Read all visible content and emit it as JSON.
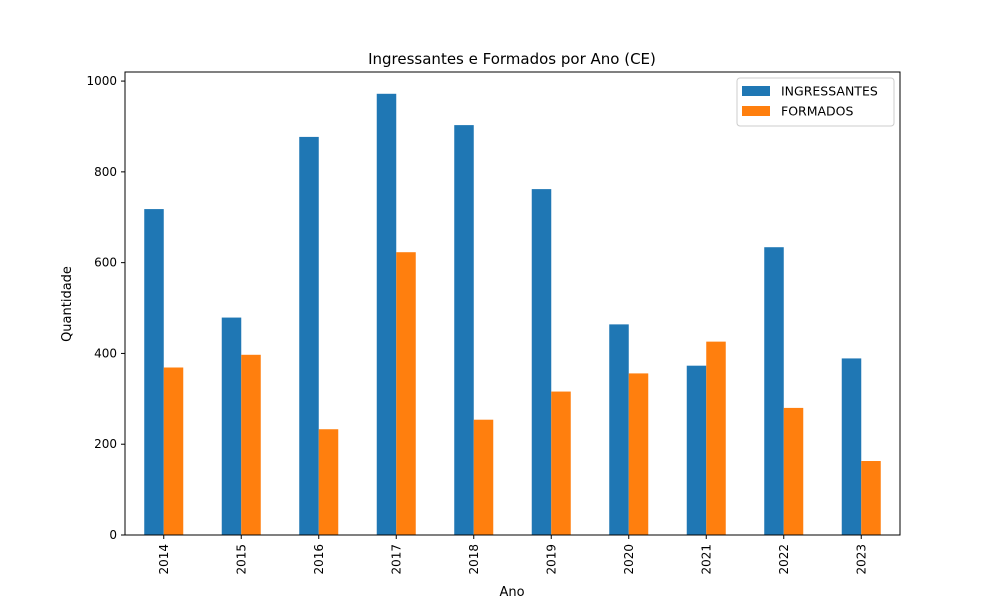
{
  "chart_data": {
    "type": "bar",
    "title": "Ingressantes e Formados por Ano (CE)",
    "xlabel": "Ano",
    "ylabel": "Quantidade",
    "categories": [
      "2014",
      "2015",
      "2016",
      "2017",
      "2018",
      "2019",
      "2020",
      "2021",
      "2022",
      "2023"
    ],
    "series": [
      {
        "name": "INGRESSANTES",
        "color": "#1f77b4",
        "values": [
          718,
          479,
          877,
          972,
          903,
          762,
          464,
          373,
          634,
          389
        ]
      },
      {
        "name": "FORMADOS",
        "color": "#ff7f0e",
        "values": [
          369,
          397,
          233,
          623,
          254,
          316,
          356,
          426,
          280,
          163
        ]
      }
    ],
    "ylim": [
      0,
      1020
    ],
    "yticks": [
      0,
      200,
      400,
      600,
      800,
      1000
    ],
    "grid": false,
    "legend_position": "top-right"
  }
}
